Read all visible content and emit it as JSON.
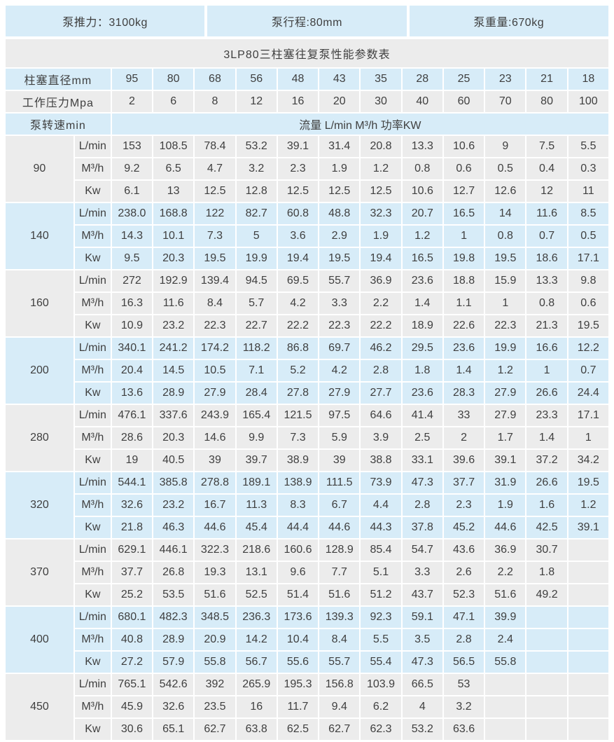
{
  "info_bar": {
    "thrust": "泵推力：3100kg",
    "stroke": "泵行程:80mm",
    "weight": "泵重量:670kg"
  },
  "title": "3LP80三柱塞往复泵性能参数表",
  "headers": {
    "diameter_label": "柱塞直径mm",
    "diameters": [
      "95",
      "80",
      "68",
      "56",
      "48",
      "43",
      "35",
      "28",
      "25",
      "23",
      "21",
      "18"
    ],
    "pressure_label": "工作压力Mpa",
    "pressures": [
      "2",
      "6",
      "8",
      "12",
      "16",
      "20",
      "30",
      "40",
      "60",
      "70",
      "80",
      "100"
    ],
    "speed_label": "泵转速min",
    "flow_header": "流量 L/min M³/h 功率KW"
  },
  "flow_units": [
    "L/min",
    "M³/h",
    "Kw"
  ],
  "groups": [
    {
      "speed": "90",
      "rows": [
        [
          "153",
          "108.5",
          "78.4",
          "53.2",
          "39.1",
          "31.4",
          "20.8",
          "13.3",
          "10.6",
          "9",
          "7.5",
          "5.5"
        ],
        [
          "9.2",
          "6.5",
          "4.7",
          "3.2",
          "2.3",
          "1.9",
          "1.2",
          "0.8",
          "0.6",
          "0.5",
          "0.4",
          "0.3"
        ],
        [
          "6.1",
          "13",
          "12.5",
          "12.8",
          "12.5",
          "12.5",
          "12.5",
          "10.6",
          "12.7",
          "12.6",
          "12",
          "11"
        ]
      ]
    },
    {
      "speed": "140",
      "rows": [
        [
          "238.0",
          "168.8",
          "122",
          "82.7",
          "60.8",
          "48.8",
          "32.3",
          "20.7",
          "16.5",
          "14",
          "11.6",
          "8.5"
        ],
        [
          "14.3",
          "10.1",
          "7.3",
          "5",
          "3.6",
          "2.9",
          "1.9",
          "1.2",
          "1",
          "0.8",
          "0.7",
          "0.5"
        ],
        [
          "9.5",
          "20.3",
          "19.5",
          "19.9",
          "19.4",
          "19.5",
          "19.4",
          "16.5",
          "19.8",
          "19.5",
          "18.6",
          "17.1"
        ]
      ]
    },
    {
      "speed": "160",
      "rows": [
        [
          "272",
          "192.9",
          "139.4",
          "94.5",
          "69.5",
          "55.7",
          "36.9",
          "23.6",
          "18.8",
          "15.9",
          "13.3",
          "9.8"
        ],
        [
          "16.3",
          "11.6",
          "8.4",
          "5.7",
          "4.2",
          "3.3",
          "2.2",
          "1.4",
          "1.1",
          "1",
          "0.8",
          "0.6"
        ],
        [
          "10.9",
          "23.2",
          "22.3",
          "22.7",
          "22.2",
          "22.3",
          "22.2",
          "18.9",
          "22.6",
          "22.3",
          "21.3",
          "19.5"
        ]
      ]
    },
    {
      "speed": "200",
      "rows": [
        [
          "340.1",
          "241.2",
          "174.2",
          "118.2",
          "86.8",
          "69.7",
          "46.2",
          "29.5",
          "23.6",
          "19.9",
          "16.6",
          "12.2"
        ],
        [
          "20.4",
          "14.5",
          "10.5",
          "7.1",
          "5.2",
          "4.2",
          "2.8",
          "1.8",
          "1.4",
          "1.2",
          "1",
          "0.7"
        ],
        [
          "13.6",
          "28.9",
          "27.9",
          "28.4",
          "27.8",
          "27.9",
          "27.7",
          "23.6",
          "28.3",
          "27.9",
          "26.6",
          "24.4"
        ]
      ]
    },
    {
      "speed": "280",
      "rows": [
        [
          "476.1",
          "337.6",
          "243.9",
          "165.4",
          "121.5",
          "97.5",
          "64.6",
          "41.4",
          "33",
          "27.9",
          "23.3",
          "17.1"
        ],
        [
          "28.6",
          "20.3",
          "14.6",
          "9.9",
          "7.3",
          "5.9",
          "3.9",
          "2.5",
          "2",
          "1.7",
          "1.4",
          "1"
        ],
        [
          "19",
          "40.5",
          "39",
          "39.7",
          "38.9",
          "39",
          "38.8",
          "33.1",
          "39.6",
          "39.1",
          "37.2",
          "34.2"
        ]
      ]
    },
    {
      "speed": "320",
      "rows": [
        [
          "544.1",
          "385.8",
          "278.8",
          "189.1",
          "138.9",
          "111.5",
          "73.9",
          "47.3",
          "37.7",
          "31.9",
          "26.6",
          "19.5"
        ],
        [
          "32.6",
          "23.2",
          "16.7",
          "11.3",
          "8.3",
          "6.7",
          "4.4",
          "2.8",
          "2.3",
          "1.9",
          "1.6",
          "1.2"
        ],
        [
          "21.8",
          "46.3",
          "44.6",
          "45.4",
          "44.4",
          "44.6",
          "44.3",
          "37.8",
          "45.2",
          "44.6",
          "42.5",
          "39.1"
        ]
      ]
    },
    {
      "speed": "370",
      "rows": [
        [
          "629.1",
          "446.1",
          "322.3",
          "218.6",
          "160.6",
          "128.9",
          "85.4",
          "54.7",
          "43.6",
          "36.9",
          "30.7"
        ],
        [
          "37.7",
          "26.8",
          "19.3",
          "13.1",
          "9.6",
          "7.7",
          "5.1",
          "3.3",
          "2.6",
          "2.2",
          "1.8"
        ],
        [
          "25.2",
          "53.5",
          "51.6",
          "52.5",
          "51.4",
          "51.6",
          "51.2",
          "43.7",
          "52.3",
          "51.6",
          "49.2"
        ]
      ]
    },
    {
      "speed": "400",
      "rows": [
        [
          "680.1",
          "482.3",
          "348.5",
          "236.3",
          "173.6",
          "139.3",
          "92.3",
          "59.1",
          "47.1",
          "39.9"
        ],
        [
          "40.8",
          "28.9",
          "20.9",
          "14.2",
          "10.4",
          "8.4",
          "5.5",
          "3.5",
          "2.8",
          "2.4"
        ],
        [
          "27.2",
          "57.9",
          "55.8",
          "56.7",
          "55.6",
          "55.7",
          "55.4",
          "47.3",
          "56.5",
          "55.8"
        ]
      ]
    },
    {
      "speed": "450",
      "rows": [
        [
          "765.1",
          "542.6",
          "392",
          "265.9",
          "195.3",
          "156.8",
          "103.9",
          "66.5",
          "53"
        ],
        [
          "45.9",
          "32.6",
          "23.5",
          "16",
          "11.7",
          "9.4",
          "6.2",
          "4",
          "3.2"
        ],
        [
          "30.6",
          "65.1",
          "62.7",
          "63.8",
          "62.5",
          "62.7",
          "62.3",
          "53.2",
          "63.6"
        ]
      ]
    }
  ],
  "colors": {
    "band_blue": "#d7ecf8",
    "band_gray": "#ececec",
    "text": "#3f3f3f",
    "grid": "#ffffff"
  }
}
